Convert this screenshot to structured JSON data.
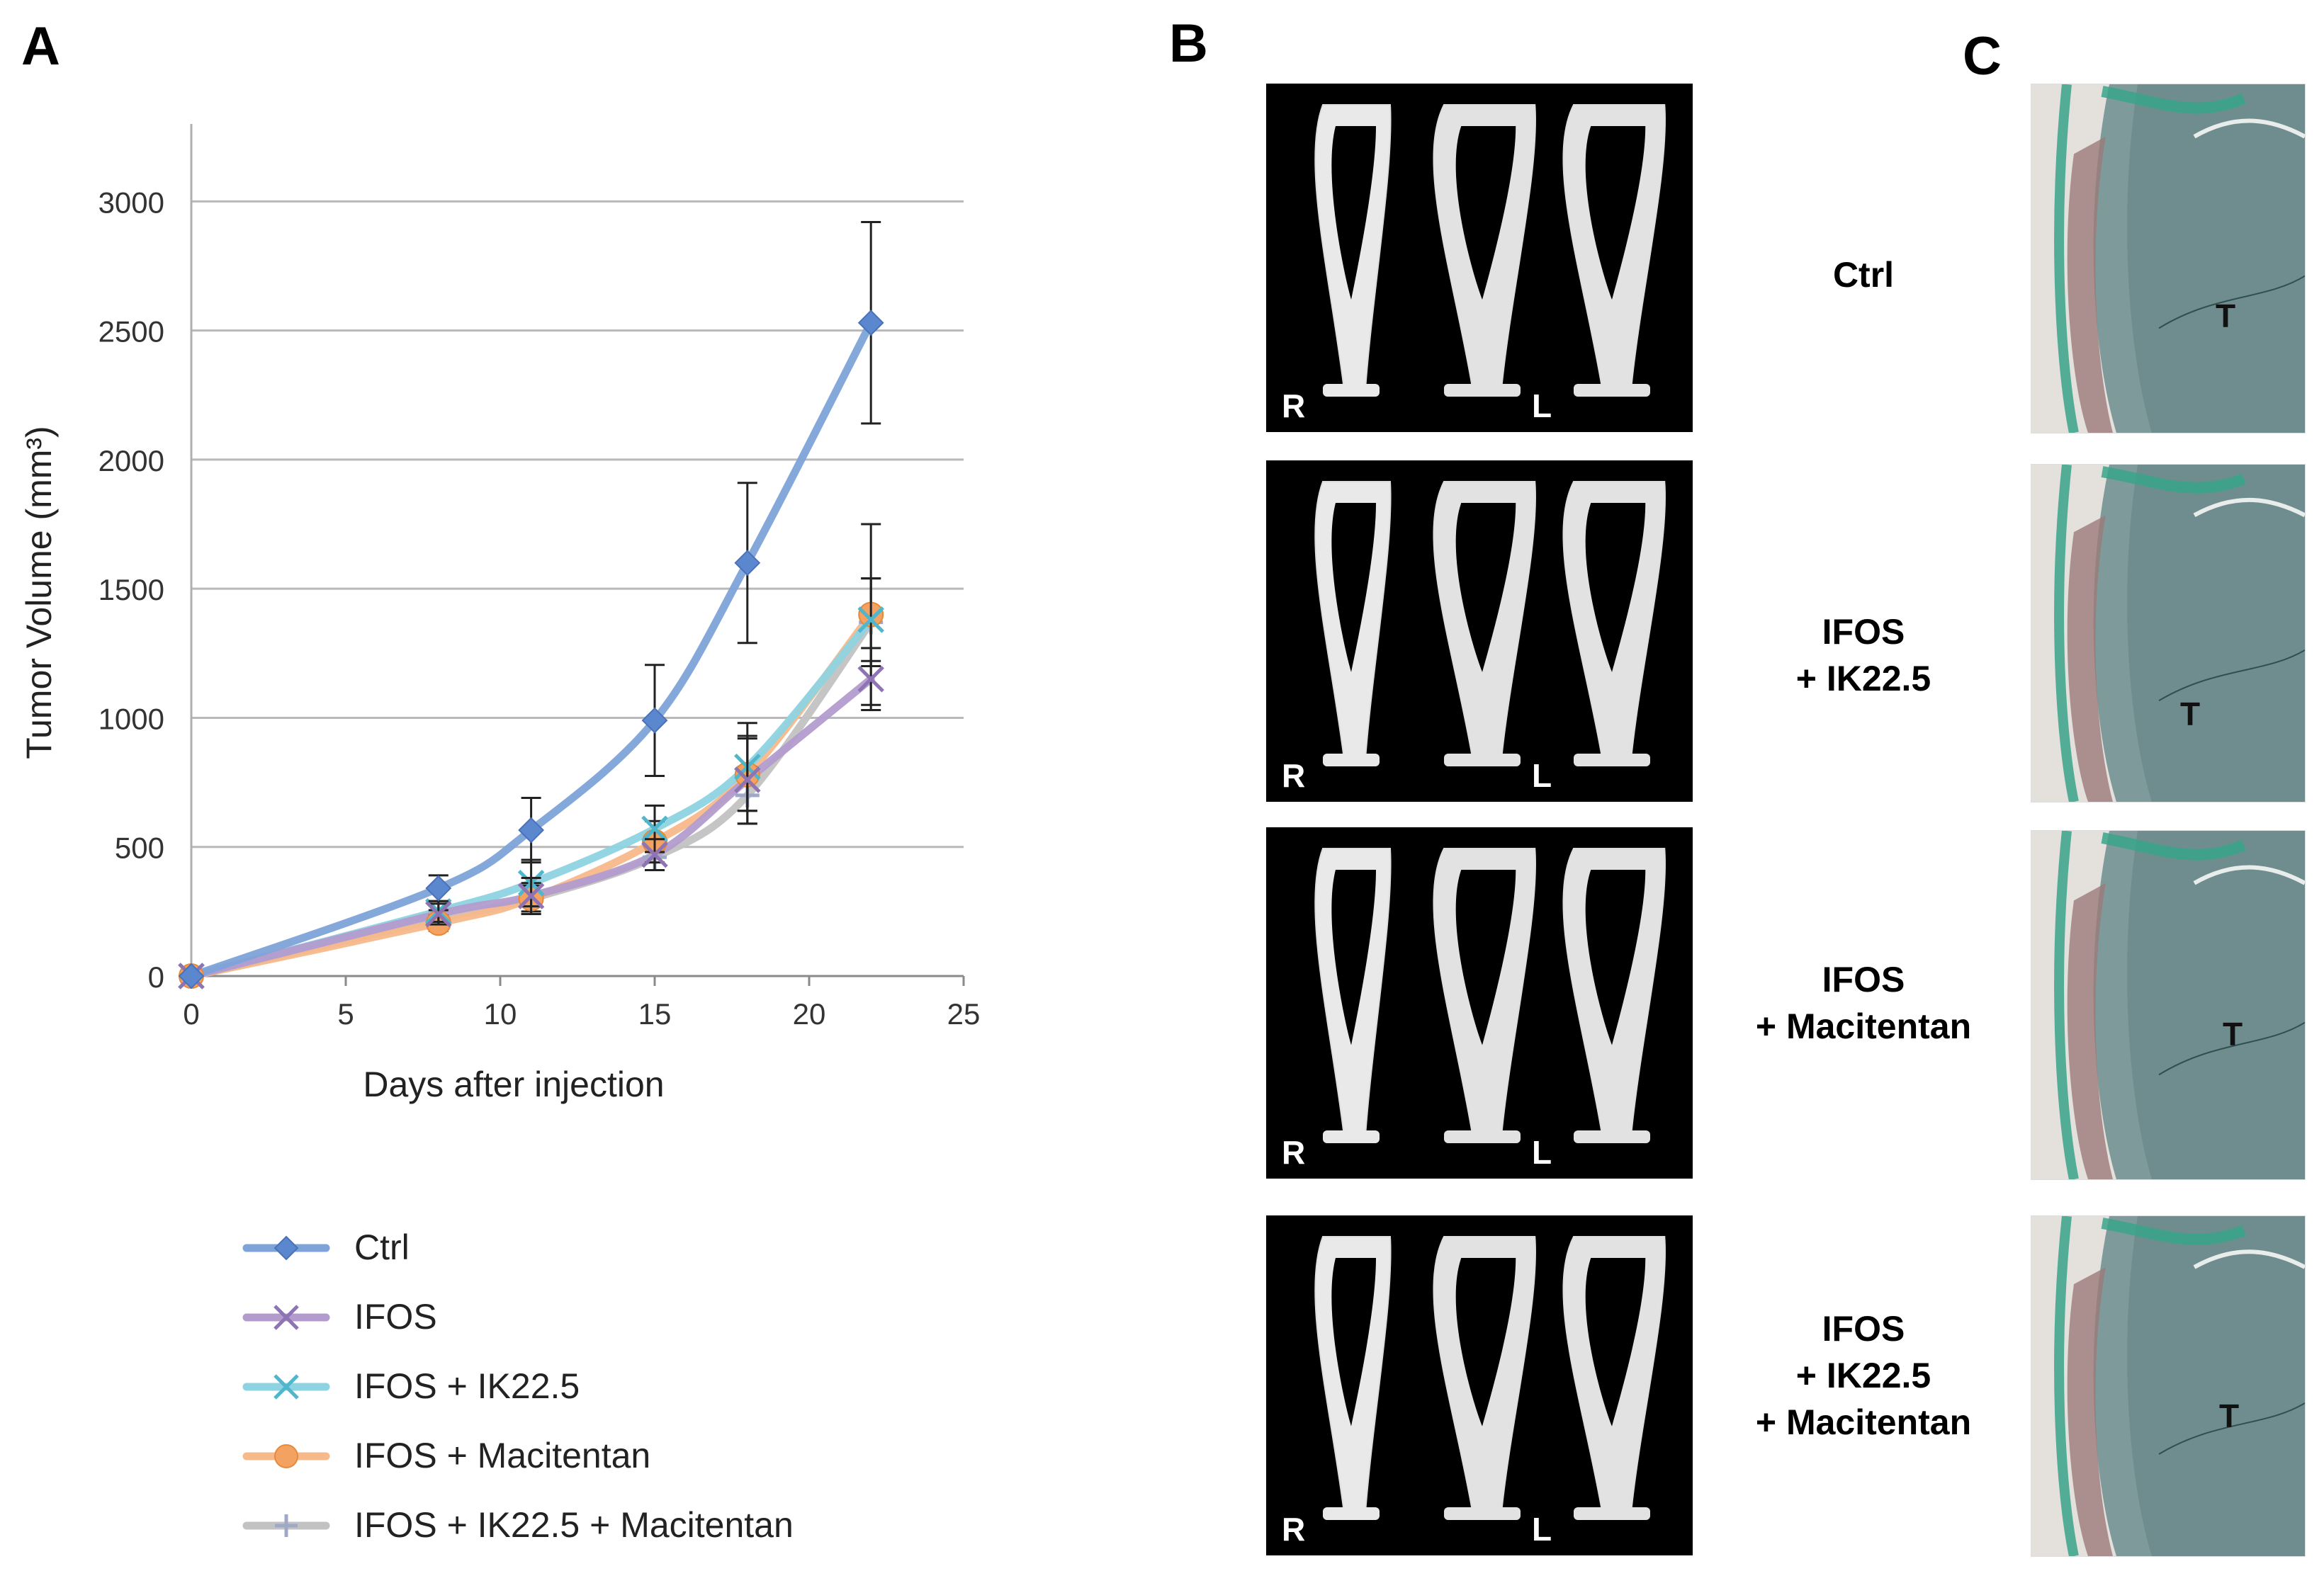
{
  "panels": {
    "a": "A",
    "b": "B",
    "c": "C"
  },
  "chart_data": {
    "type": "line",
    "ylabel": "Tumor Volume (mm³)",
    "xlabel": "Days after injection",
    "xlim": [
      0,
      25
    ],
    "ylim": [
      0,
      3300
    ],
    "xticks": [
      0,
      5,
      10,
      15,
      20,
      25
    ],
    "yticks": [
      0,
      500,
      1000,
      1500,
      2000,
      2500,
      3000
    ],
    "grid": "horizontal",
    "legend_position": "bottom",
    "x": [
      0,
      8,
      11,
      15,
      18,
      22
    ],
    "series": [
      {
        "name": "Ctrl",
        "color": "#7ea3d9",
        "marker": "diamond",
        "marker_color": "#5b87cf",
        "values": [
          0,
          340,
          565,
          990,
          1600,
          2530
        ],
        "errors": [
          0,
          50,
          125,
          215,
          310,
          390
        ]
      },
      {
        "name": "IFOS",
        "color": "#b39ccd",
        "marker": "x",
        "marker_color": "#8e74b3",
        "values": [
          0,
          240,
          310,
          470,
          760,
          1150
        ],
        "errors": [
          0,
          40,
          70,
          60,
          170,
          120
        ]
      },
      {
        "name": "IFOS + IK22.5",
        "color": "#8ed3e2",
        "marker": "x",
        "marker_color": "#4fb6cc",
        "values": [
          0,
          250,
          360,
          570,
          810,
          1380
        ],
        "errors": [
          0,
          40,
          90,
          90,
          170,
          160
        ]
      },
      {
        "name": "IFOS + Macitentan",
        "color": "#f7b98a",
        "marker": "circle",
        "marker_color": "#f4a261",
        "values": [
          0,
          205,
          300,
          520,
          780,
          1400
        ],
        "errors": [
          0,
          30,
          50,
          80,
          140,
          350
        ]
      },
      {
        "name": "IFOS + IK22.5 + Macitentan",
        "color": "#c2c2c2",
        "marker": "plus",
        "marker_color": "#a0a8c8",
        "values": [
          0,
          220,
          300,
          460,
          700,
          1370
        ],
        "errors": [
          0,
          35,
          60,
          50,
          110,
          170
        ]
      }
    ]
  },
  "ct": {
    "left_label": "R",
    "right_label": "L"
  },
  "groups": [
    {
      "lines": [
        "Ctrl"
      ]
    },
    {
      "lines": [
        "IFOS",
        "+ IK22.5"
      ]
    },
    {
      "lines": [
        "IFOS",
        "+ Macitentan"
      ]
    },
    {
      "lines": [
        "IFOS",
        "+ IK22.5",
        "+ Macitentan"
      ]
    }
  ],
  "histology": {
    "tumor_label": "T"
  }
}
